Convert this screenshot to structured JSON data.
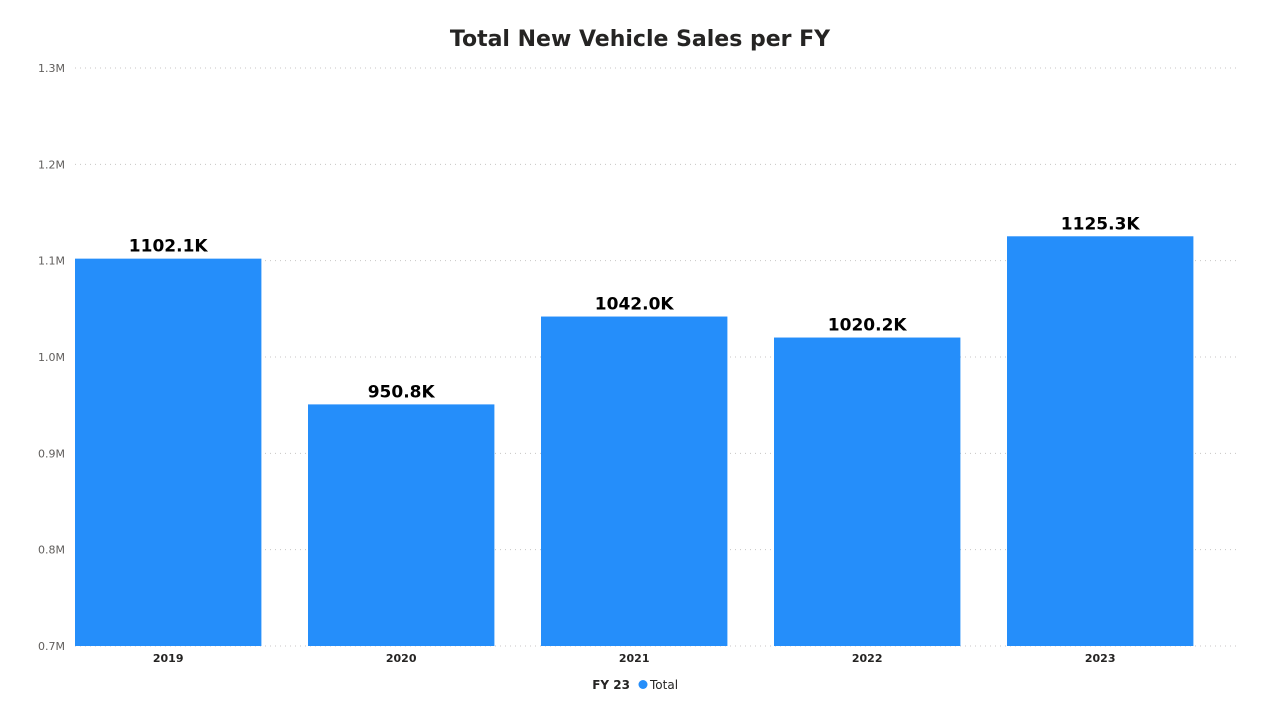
{
  "chart_data": {
    "type": "bar",
    "title": "Total New Vehicle Sales per FY",
    "xlabel": "",
    "ylabel": "",
    "categories": [
      "2019",
      "2020",
      "2021",
      "2022",
      "2023"
    ],
    "series": [
      {
        "name": "Total",
        "values": [
          1102100,
          950800,
          1042000,
          1020200,
          1125300
        ],
        "data_labels": [
          "1102.1K",
          "950.8K",
          "1042.0K",
          "1020.2K",
          "1125.3K"
        ],
        "color": "#258EFA"
      }
    ],
    "ylim": [
      700000,
      1300000
    ],
    "y_ticks": [
      700000,
      800000,
      900000,
      1000000,
      1100000,
      1200000,
      1300000
    ],
    "y_tick_labels": [
      "0.7M",
      "0.8M",
      "0.9M",
      "1.0M",
      "1.1M",
      "1.2M",
      "1.3M"
    ],
    "grid": true,
    "legend": {
      "title": "FY 23",
      "placement": "bottom-center"
    }
  }
}
